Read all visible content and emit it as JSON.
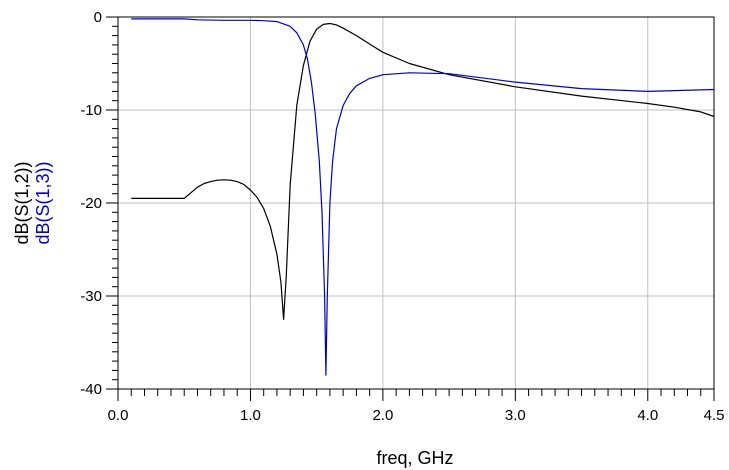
{
  "chart_data": {
    "type": "line",
    "xlabel": "freq, GHz",
    "ylabels": [
      {
        "text": "dB(S(1,2))",
        "color": "#000000"
      },
      {
        "text": "dB(S(1,3))",
        "color": "#0000cc"
      }
    ],
    "xlim": [
      0,
      4.5
    ],
    "ylim": [
      -40,
      0
    ],
    "xticks": [
      0.0,
      1.0,
      2.0,
      3.0,
      4.0,
      4.5
    ],
    "xtick_labels": [
      "0.0",
      "1.0",
      "2.0",
      "3.0",
      "4.0",
      "4.5"
    ],
    "yticks": [
      0,
      -10,
      -20,
      -30,
      -40
    ],
    "ytick_labels": [
      "0",
      "-10",
      "-20",
      "-30",
      "-40"
    ],
    "grid": true,
    "series": [
      {
        "name": "dB(S(1,2))",
        "color": "#000000",
        "x": [
          0.1,
          0.3,
          0.5,
          0.55,
          0.6,
          0.65,
          0.7,
          0.75,
          0.8,
          0.85,
          0.9,
          0.95,
          1.0,
          1.05,
          1.1,
          1.15,
          1.2,
          1.23,
          1.25,
          1.27,
          1.3,
          1.35,
          1.4,
          1.45,
          1.5,
          1.55,
          1.6,
          1.65,
          1.7,
          1.8,
          1.9,
          2.0,
          2.2,
          2.5,
          3.0,
          3.5,
          4.0,
          4.2,
          4.4,
          4.5
        ],
        "y": [
          -19.5,
          -19.5,
          -19.5,
          -18.9,
          -18.3,
          -17.9,
          -17.7,
          -17.55,
          -17.5,
          -17.55,
          -17.7,
          -18.0,
          -18.6,
          -19.4,
          -20.6,
          -22.5,
          -25.5,
          -28.5,
          -32.5,
          -28.0,
          -18.0,
          -9.5,
          -5.2,
          -2.6,
          -1.3,
          -0.8,
          -0.7,
          -0.85,
          -1.2,
          -2.0,
          -2.9,
          -3.8,
          -5.0,
          -6.2,
          -7.5,
          -8.5,
          -9.3,
          -9.7,
          -10.2,
          -10.7
        ]
      },
      {
        "name": "dB(S(1,3))",
        "color": "#0000cc",
        "x": [
          0.1,
          0.5,
          0.6,
          0.8,
          1.0,
          1.1,
          1.2,
          1.3,
          1.35,
          1.4,
          1.43,
          1.46,
          1.49,
          1.52,
          1.54,
          1.56,
          1.57,
          1.58,
          1.6,
          1.62,
          1.65,
          1.7,
          1.75,
          1.8,
          1.9,
          2.0,
          2.2,
          2.5,
          3.0,
          3.5,
          4.0,
          4.5
        ],
        "y": [
          -0.2,
          -0.2,
          -0.3,
          -0.35,
          -0.35,
          -0.4,
          -0.5,
          -1.0,
          -1.7,
          -3.0,
          -4.5,
          -7.0,
          -10.5,
          -15.5,
          -21.0,
          -30.0,
          -38.5,
          -30.0,
          -20.0,
          -15.5,
          -12.0,
          -9.5,
          -8.2,
          -7.4,
          -6.6,
          -6.2,
          -6.0,
          -6.1,
          -7.0,
          -7.7,
          -8.0,
          -7.8
        ]
      }
    ]
  }
}
